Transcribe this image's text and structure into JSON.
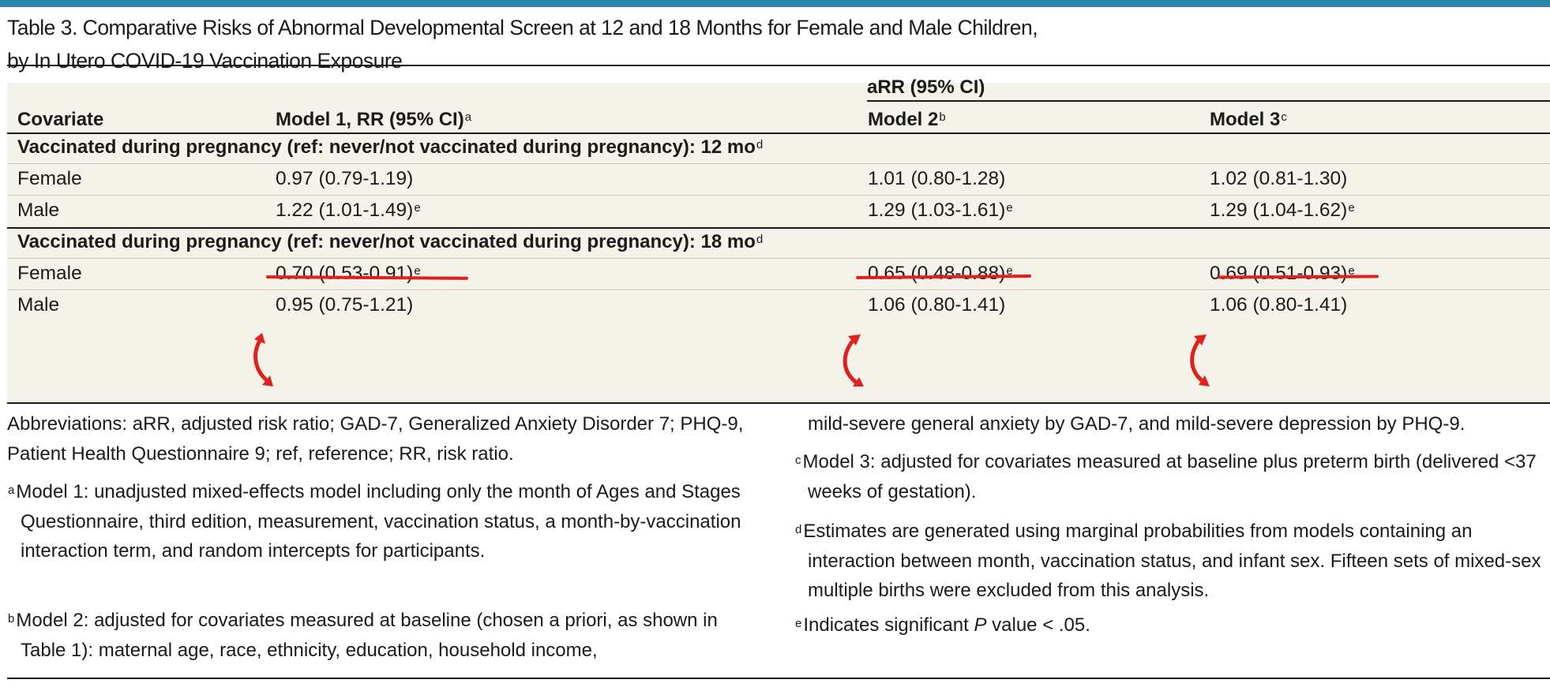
{
  "title": {
    "line1": "Table 3. Comparative Risks of Abnormal Developmental Screen at 12 and 18 Months for Female and Male Children,",
    "line2": "by In Utero COVID-19 Vaccination Exposure"
  },
  "table": {
    "header": {
      "group_label": "aRR (95% CI)",
      "covariate": "Covariate",
      "model1": "Model 1, RR (95% CI)",
      "model1_sup": "a",
      "model2": "Model 2",
      "model2_sup": "b",
      "model3": "Model 3",
      "model3_sup": "c"
    },
    "sections": [
      {
        "label": "Vaccinated during pregnancy (ref: never/not vaccinated during pregnancy): 12 mo",
        "sup": "d",
        "rows": [
          {
            "covariate": "Female",
            "m1": "0.97 (0.79-1.19)",
            "m1_sup": "",
            "m2": "1.01 (0.80-1.28)",
            "m2_sup": "",
            "m3": "1.02 (0.81-1.30)",
            "m3_sup": ""
          },
          {
            "covariate": "Male",
            "m1": "1.22 (1.01-1.49)",
            "m1_sup": "e",
            "m2": "1.29 (1.03-1.61)",
            "m2_sup": "e",
            "m3": "1.29 (1.04-1.62)",
            "m3_sup": "e"
          }
        ]
      },
      {
        "label": "Vaccinated during pregnancy (ref: never/not vaccinated during pregnancy): 18 mo",
        "sup": "d",
        "rows": [
          {
            "covariate": "Female",
            "m1": "0.70 (0.53-0.91)",
            "m1_sup": "e",
            "m2": "0.65 (0.48-0.88)",
            "m2_sup": "e",
            "m3": "0.69 (0.51-0.93)",
            "m3_sup": "e"
          },
          {
            "covariate": "Male",
            "m1": "0.95 (0.75-1.21)",
            "m1_sup": "",
            "m2": "1.06 (0.80-1.41)",
            "m2_sup": "",
            "m3": "1.06 (0.80-1.41)",
            "m3_sup": ""
          }
        ]
      }
    ]
  },
  "footnotes": {
    "abbreviations": "Abbreviations: aRR, adjusted risk ratio; GAD-7, Generalized Anxiety Disorder 7; PHQ-9, Patient Health Questionnaire 9; ref, reference; RR, risk ratio.",
    "a_mark": "a",
    "a": "Model 1: unadjusted mixed-effects model including only the month of Ages and Stages Questionnaire, third edition, measurement, vaccination status, a month-by-vaccination interaction term, and random intercepts for participants.",
    "b_mark": "b",
    "b": "Model 2: adjusted for covariates measured at baseline (chosen a priori, as shown in Table 1): maternal age, race, ethnicity, education, household income,",
    "b_cont": "mild-severe general anxiety by GAD-7, and mild-severe depression by PHQ-9.",
    "c_mark": "c",
    "c": "Model 3: adjusted for covariates measured at baseline plus preterm birth (delivered <37 weeks of gestation).",
    "d_mark": "d",
    "d": "Estimates are generated using marginal probabilities from models containing an interaction between month, vaccination status, and infant sex. Fifteen sets of mixed-sex multiple births were excluded from this analysis.",
    "e_mark": "e",
    "e_pre": "Indicates significant ",
    "e_italic": "P",
    "e_post": " value < .05."
  },
  "annotation_color": "#e0201c",
  "accent_color": "#2e86a8"
}
